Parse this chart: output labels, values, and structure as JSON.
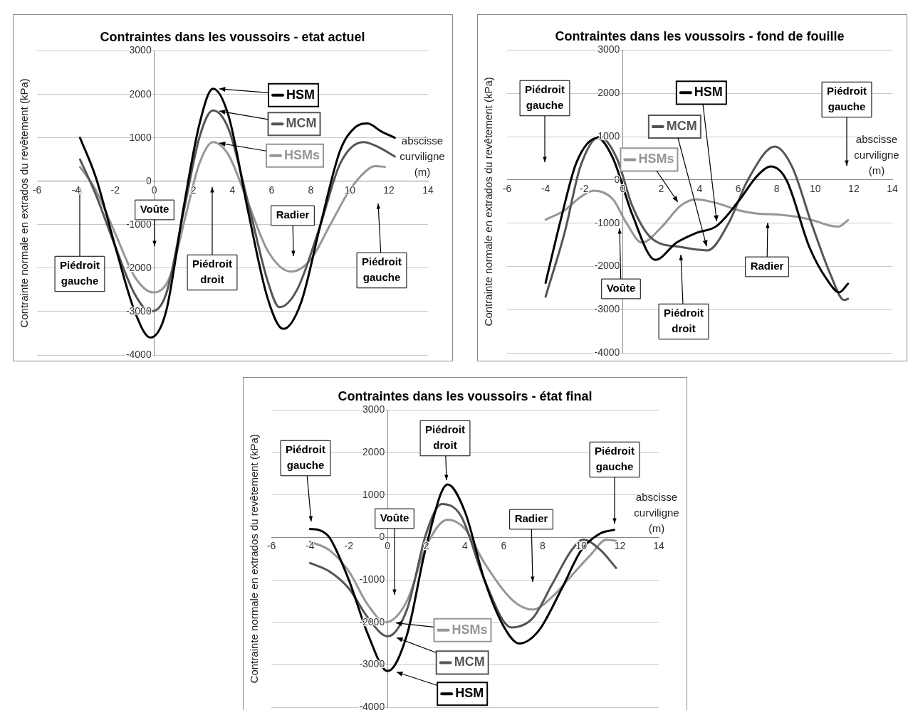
{
  "chart_data": [
    {
      "type": "line",
      "title": "Contraintes dans les voussoirs - etat actuel",
      "xlabel": "abscisse curviligne (m)",
      "ylabel": "Contrainte normale en extrados du revêtement (kPa)",
      "xlim": [
        -6,
        14
      ],
      "xticks": [
        -6,
        -4,
        -2,
        0,
        2,
        4,
        6,
        8,
        10,
        12,
        14
      ],
      "ylim": [
        -4000,
        3000
      ],
      "yticks": [
        -4000,
        -3000,
        -2000,
        -1000,
        0,
        1000,
        2000,
        3000
      ],
      "grid": "y",
      "line_style": "solid",
      "legend": "top",
      "series": [
        {
          "name": "HSM",
          "color": "#000000",
          "x": [
            -3.8,
            -3,
            -2,
            -1,
            -0.2,
            0.6,
            1.5,
            2.3,
            3.0,
            3.8,
            4.8,
            5.8,
            6.6,
            7.5,
            8.5,
            9.5,
            10.3,
            10.9,
            11.6,
            12.3
          ],
          "values": [
            1000,
            100,
            -1500,
            -3000,
            -3600,
            -3000,
            -600,
            1300,
            2130,
            1500,
            -700,
            -2700,
            -3400,
            -2800,
            -1000,
            700,
            1250,
            1330,
            1150,
            1000
          ]
        },
        {
          "name": "MCM",
          "color": "#555555",
          "x": [
            -3.8,
            -3,
            -2,
            -1,
            -0.2,
            0.6,
            1.5,
            2.3,
            3.0,
            3.8,
            4.8,
            5.8,
            6.4,
            7.3,
            8.5,
            9.5,
            10.7,
            11.4,
            12.3
          ],
          "values": [
            500,
            -300,
            -1500,
            -2600,
            -3000,
            -2600,
            -700,
            1000,
            1630,
            1200,
            -500,
            -2300,
            -2900,
            -2500,
            -1000,
            400,
            900,
            800,
            570
          ]
        },
        {
          "name": "HSMs",
          "color": "#969696",
          "x": [
            -3.8,
            -3,
            -2,
            -1,
            -0.05,
            0.8,
            1.6,
            2.3,
            3.0,
            3.8,
            4.8,
            5.8,
            7.0,
            8.0,
            9.0,
            10.0,
            11.0,
            11.3,
            11.8
          ],
          "values": [
            330,
            -200,
            -1200,
            -2200,
            -2560,
            -2200,
            -800,
            400,
            900,
            600,
            -500,
            -1600,
            -2080,
            -1800,
            -1000,
            -200,
            300,
            350,
            330
          ]
        }
      ],
      "annotations": [
        "Piédroit gauche",
        "Voûte",
        "Piédroit droit",
        "Radier",
        "Piédroit gauche"
      ]
    },
    {
      "type": "line",
      "title": "Contraintes dans les voussoirs - fond de fouille",
      "xlabel": "abscisse curviligne (m)",
      "ylabel": "Contrainte normale en extrados du revêtement (kPa)",
      "xlim": [
        -6,
        14
      ],
      "xticks": [
        -6,
        -4,
        -2,
        0,
        2,
        4,
        6,
        8,
        10,
        12,
        14
      ],
      "ylim": [
        -4000,
        3000
      ],
      "yticks": [
        -4000,
        -3000,
        -2000,
        -1000,
        0,
        1000,
        2000,
        3000
      ],
      "grid": "y",
      "line_style": "solid",
      "legend": "top",
      "series": [
        {
          "name": "HSM",
          "color": "#000000",
          "x": [
            -4,
            -3.2,
            -2.4,
            -1.3,
            -0.5,
            0.5,
            1.7,
            2.8,
            3.8,
            4.9,
            6,
            7,
            7.7,
            8.5,
            9.7,
            10.6,
            11.25,
            11.7
          ],
          "values": [
            -2380,
            -900,
            400,
            970,
            500,
            -800,
            -1850,
            -1450,
            -1230,
            -1060,
            -500,
            100,
            310,
            0,
            -1560,
            -2300,
            -2600,
            -2400
          ]
        },
        {
          "name": "MCM",
          "color": "#555555",
          "x": [
            -4,
            -3,
            -2.2,
            -1.2,
            -0.3,
            0.5,
            1.5,
            3,
            4.4,
            5.5,
            6.5,
            7.9,
            8.8,
            9.8,
            10.8,
            11.5,
            11.7
          ],
          "values": [
            -2700,
            -1200,
            300,
            1000,
            500,
            -600,
            -1350,
            -1550,
            -1630,
            -1000,
            0,
            770,
            300,
            -1000,
            -2200,
            -2780,
            -2750
          ]
        },
        {
          "name": "HSMs",
          "color": "#969696",
          "x": [
            -4,
            -3,
            -2.2,
            -1.5,
            -0.5,
            0.2,
            1,
            2,
            3,
            3.8,
            5,
            6,
            7,
            8,
            9,
            10,
            10.7,
            11.2,
            11.7
          ],
          "values": [
            -920,
            -700,
            -400,
            -250,
            -450,
            -1000,
            -1450,
            -1100,
            -600,
            -450,
            -550,
            -700,
            -780,
            -800,
            -850,
            -950,
            -1050,
            -1080,
            -930
          ]
        }
      ],
      "annotations": [
        "Piédroit gauche",
        "Voûte",
        "Piédroit droit",
        "Radier",
        "Piédroit gauche"
      ]
    },
    {
      "type": "line",
      "title": "Contraintes dans les voussoirs - état final",
      "xlabel": "abscisse curviligne (m)",
      "ylabel": "Contrainte normale en extrados du revêtement (kPa)",
      "xlim": [
        -6,
        14
      ],
      "xticks": [
        -6,
        -4,
        -2,
        0,
        2,
        4,
        6,
        8,
        10,
        12,
        14
      ],
      "ylim": [
        -4000,
        3000
      ],
      "yticks": [
        -4000,
        -3000,
        -2000,
        -1000,
        0,
        1000,
        2000,
        3000
      ],
      "grid": "y",
      "line_style": "solid",
      "legend": "bottom",
      "series": [
        {
          "name": "HSM",
          "color": "#000000",
          "x": [
            -4,
            -3.5,
            -3,
            -2,
            -1,
            0,
            1,
            2,
            3.1,
            4,
            5,
            6,
            6.8,
            7.8,
            9,
            10,
            11,
            11.7
          ],
          "values": [
            200,
            170,
            0,
            -1000,
            -2300,
            -3150,
            -2300,
            -200,
            1250,
            600,
            -1000,
            -2100,
            -2500,
            -2200,
            -1200,
            -300,
            100,
            180
          ]
        },
        {
          "name": "MCM",
          "color": "#555555",
          "x": [
            -4,
            -3,
            -2,
            -1,
            0,
            1,
            2,
            2.8,
            3.8,
            5,
            6.4,
            7.5,
            8.5,
            9.5,
            10.1,
            11,
            11.8
          ],
          "values": [
            -600,
            -800,
            -1200,
            -1900,
            -2330,
            -1700,
            100,
            790,
            500,
            -1000,
            -2120,
            -1900,
            -1100,
            -300,
            -50,
            -300,
            -720
          ]
        },
        {
          "name": "HSMs",
          "color": "#969696",
          "x": [
            -4,
            -3,
            -2,
            -1,
            -0.1,
            1,
            2,
            3.1,
            4,
            5,
            6.5,
            7.5,
            8.5,
            9.5,
            10.5,
            11.3,
            11.8
          ],
          "values": [
            -100,
            -300,
            -800,
            -1600,
            -2000,
            -1500,
            -200,
            420,
            200,
            -600,
            -1500,
            -1700,
            -1400,
            -900,
            -400,
            -50,
            -80
          ]
        }
      ],
      "annotations": [
        "Piédroit gauche",
        "Voûte",
        "Piédroit droit",
        "Radier",
        "Piédroit gauche"
      ]
    }
  ]
}
